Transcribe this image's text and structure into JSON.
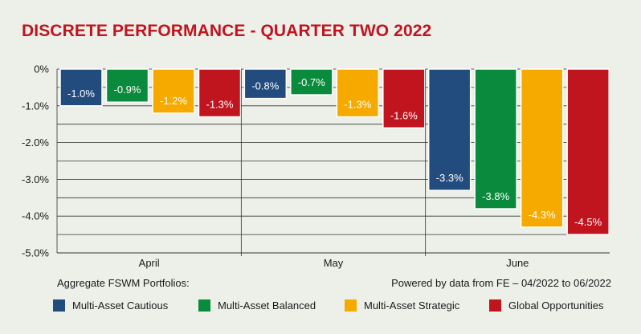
{
  "chart_data": {
    "type": "bar",
    "title": "DISCRETE PERFORMANCE - QUARTER TWO 2022",
    "categories": [
      "April",
      "May",
      "June"
    ],
    "series": [
      {
        "name": "Multi-Asset Cautious",
        "color": "#234c7e",
        "values": [
          -1.0,
          -0.8,
          -3.3
        ],
        "labels": [
          "-1.0%",
          "-0.8%",
          "-3.3%"
        ]
      },
      {
        "name": "Multi-Asset Balanced",
        "color": "#0a8a3c",
        "values": [
          -0.9,
          -0.7,
          -3.8
        ],
        "labels": [
          "-0.9%",
          "-0.7%",
          "-3.8%"
        ]
      },
      {
        "name": "Multi-Asset Strategic",
        "color": "#f6aa00",
        "values": [
          -1.2,
          -1.3,
          -4.3
        ],
        "labels": [
          "-1.2%",
          "-1.3%",
          "-4.3%"
        ]
      },
      {
        "name": "Global Opportunities",
        "color": "#c0141f",
        "values": [
          -1.3,
          -1.6,
          -4.5
        ],
        "labels": [
          "-1.3%",
          "-1.6%",
          "-4.5%"
        ]
      }
    ],
    "ylim": [
      -5.0,
      0
    ],
    "yticks": [
      0,
      -1.0,
      -2.0,
      -3.0,
      -4.0,
      -5.0
    ],
    "ytick_labels": [
      "0%",
      "-1.0%",
      "-2.0%",
      "-3.0%",
      "-4.0%",
      "-5.0%"
    ],
    "grid": true,
    "legend_position": "bottom"
  },
  "footnotes": {
    "left": "Aggregate FSWM Portfolios:",
    "right": "Powered by data from FE – 04/2022 to 06/2022"
  }
}
